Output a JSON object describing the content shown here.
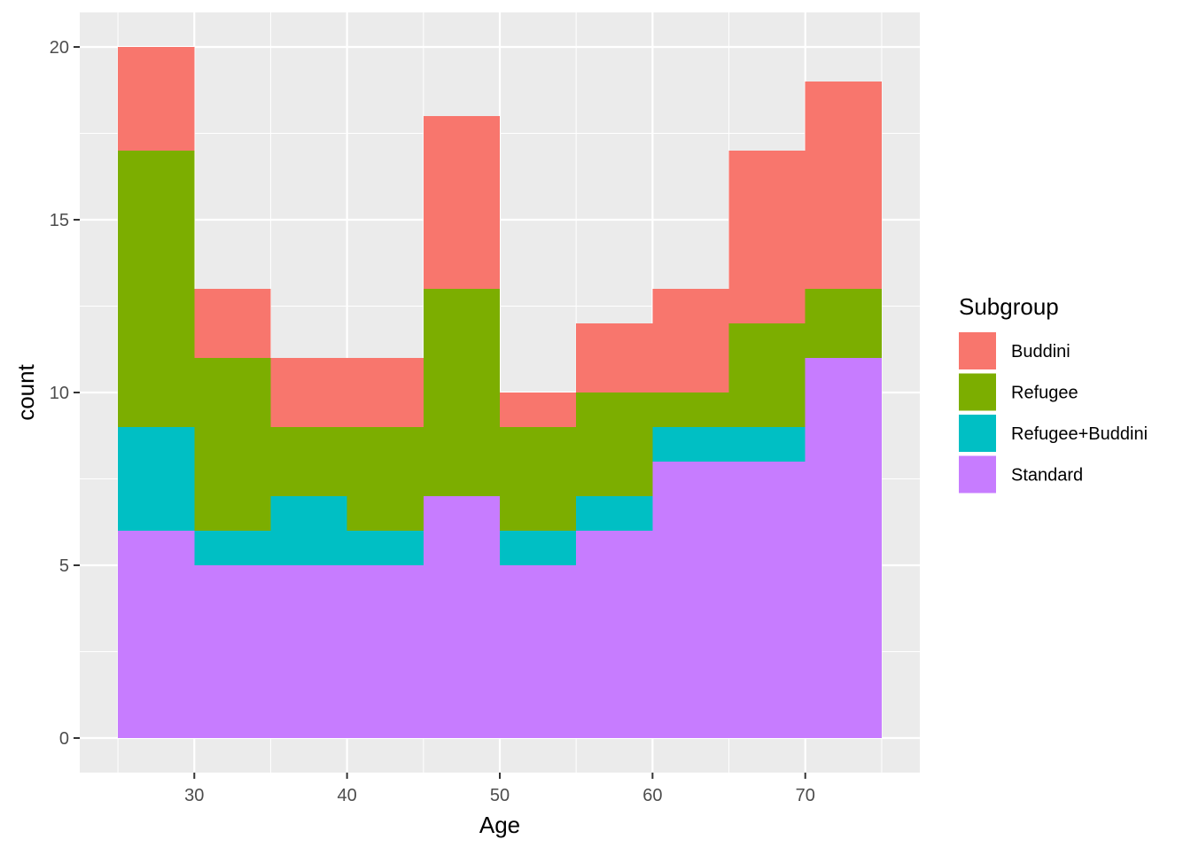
{
  "chart_data": {
    "type": "bar",
    "subtype": "stacked-histogram",
    "xlabel": "Age",
    "ylabel": "count",
    "xlim": [
      22.5,
      77.5
    ],
    "ylim": [
      -1,
      21
    ],
    "x_ticks": [
      30,
      40,
      50,
      60,
      70
    ],
    "y_ticks": [
      0,
      5,
      10,
      15,
      20
    ],
    "grid": true,
    "bins": [
      {
        "start": 25,
        "end": 30
      },
      {
        "start": 30,
        "end": 35
      },
      {
        "start": 35,
        "end": 40
      },
      {
        "start": 40,
        "end": 45
      },
      {
        "start": 45,
        "end": 50
      },
      {
        "start": 50,
        "end": 55
      },
      {
        "start": 55,
        "end": 60
      },
      {
        "start": 60,
        "end": 65
      },
      {
        "start": 65,
        "end": 70
      },
      {
        "start": 70,
        "end": 75
      }
    ],
    "series": [
      {
        "name": "Standard",
        "color": "#C77CFF",
        "values": [
          6,
          5,
          5,
          5,
          7,
          5,
          6,
          8,
          8,
          11
        ]
      },
      {
        "name": "Refugee+Buddini",
        "color": "#00BFC4",
        "values": [
          3,
          1,
          2,
          1,
          0,
          1,
          1,
          1,
          1,
          0
        ]
      },
      {
        "name": "Refugee",
        "color": "#7CAE00",
        "values": [
          8,
          5,
          2,
          3,
          6,
          3,
          3,
          1,
          3,
          2
        ]
      },
      {
        "name": "Buddini",
        "color": "#F8766D",
        "values": [
          3,
          2,
          2,
          2,
          5,
          1,
          2,
          3,
          5,
          6
        ]
      }
    ],
    "legend": {
      "title": "Subgroup",
      "position": "right",
      "order": [
        "Buddini",
        "Refugee",
        "Refugee+Buddini",
        "Standard"
      ]
    }
  },
  "colors": {
    "panel_background": "#EBEBEB",
    "grid_major": "#FFFFFF",
    "tick_text": "#4D4D4D"
  }
}
